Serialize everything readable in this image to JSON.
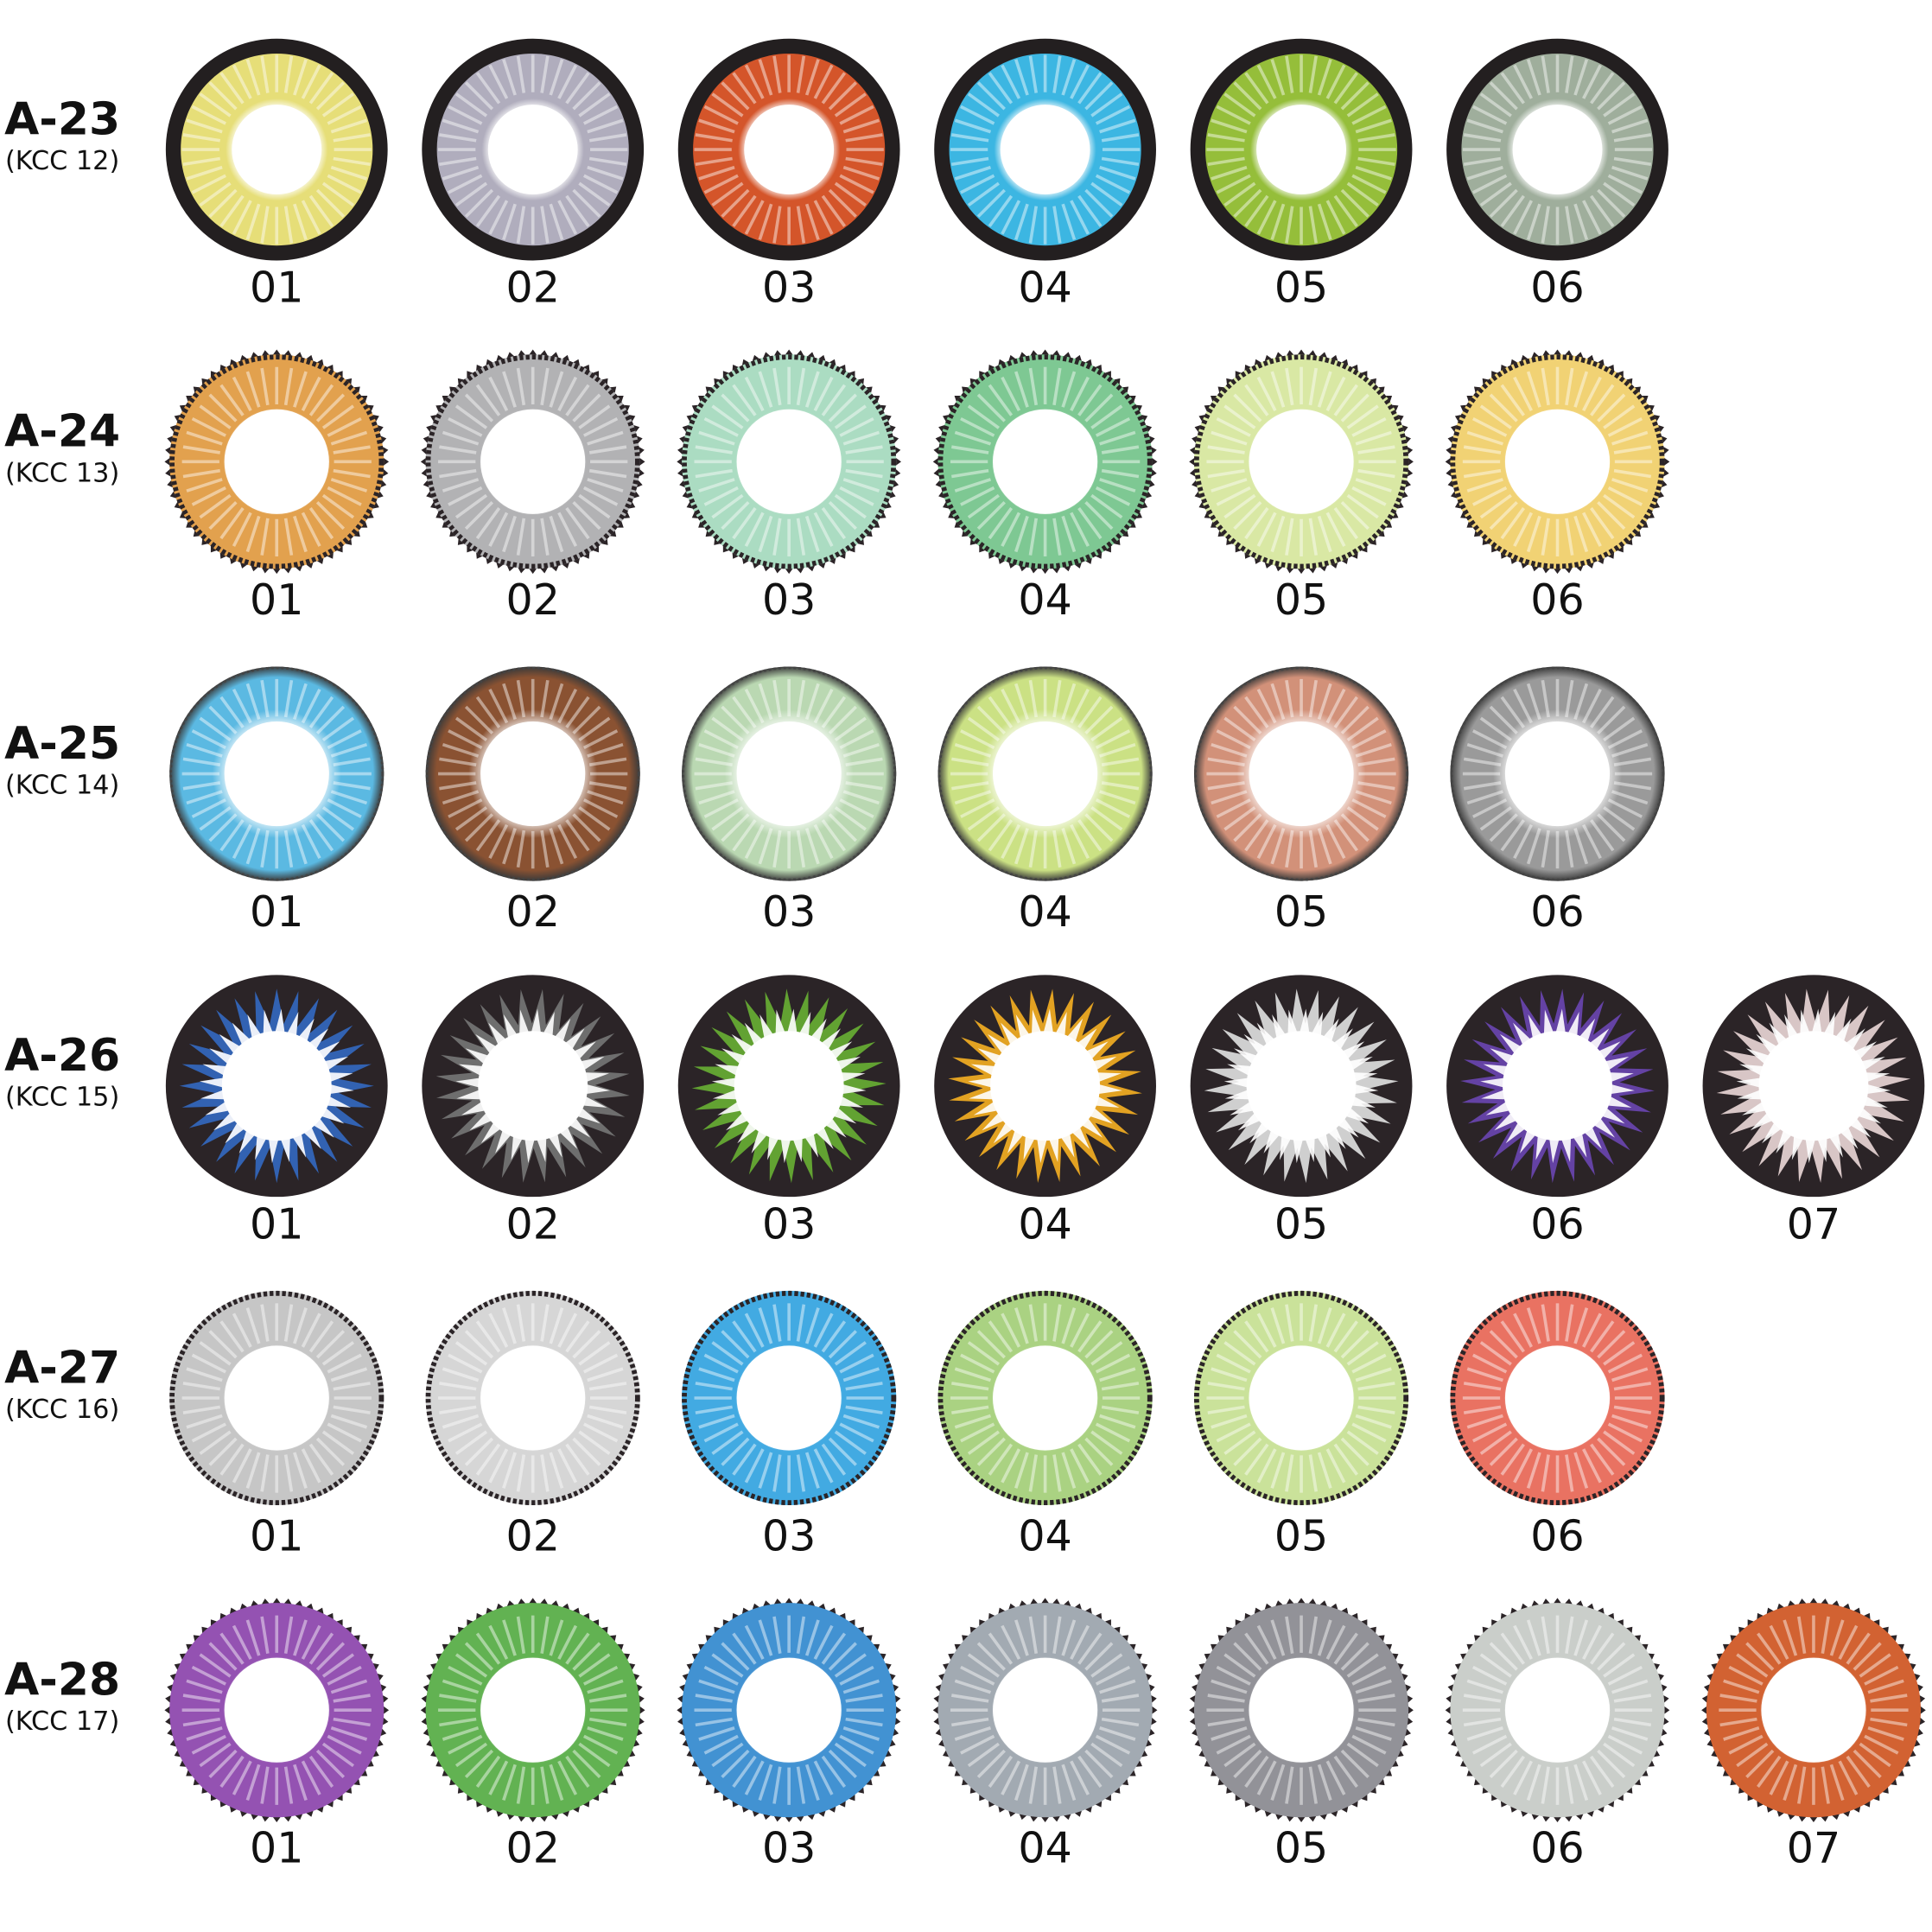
{
  "rows": [
    {
      "label": "A-23",
      "sublabel": "(KCC 12)",
      "items": [
        "01",
        "02",
        "03",
        "04",
        "05",
        "06"
      ]
    },
    {
      "label": "A-24",
      "sublabel": "(KCC 13)",
      "items": [
        "01",
        "02",
        "03",
        "04",
        "05",
        "06"
      ]
    },
    {
      "label": "A-25",
      "sublabel": "(KCC 14)",
      "items": [
        "01",
        "02",
        "03",
        "04",
        "05",
        "06"
      ]
    },
    {
      "label": "A-26",
      "sublabel": "(KCC 15)",
      "items": [
        "01",
        "02",
        "03",
        "04",
        "05",
        "06",
        "07"
      ]
    },
    {
      "label": "A-27",
      "sublabel": "(KCC 16)",
      "items": [
        "01",
        "02",
        "03",
        "04",
        "05",
        "06"
      ]
    },
    {
      "label": "A-28",
      "sublabel": "(KCC 17)",
      "items": [
        "01",
        "02",
        "03",
        "04",
        "05",
        "06",
        "07"
      ]
    }
  ]
}
